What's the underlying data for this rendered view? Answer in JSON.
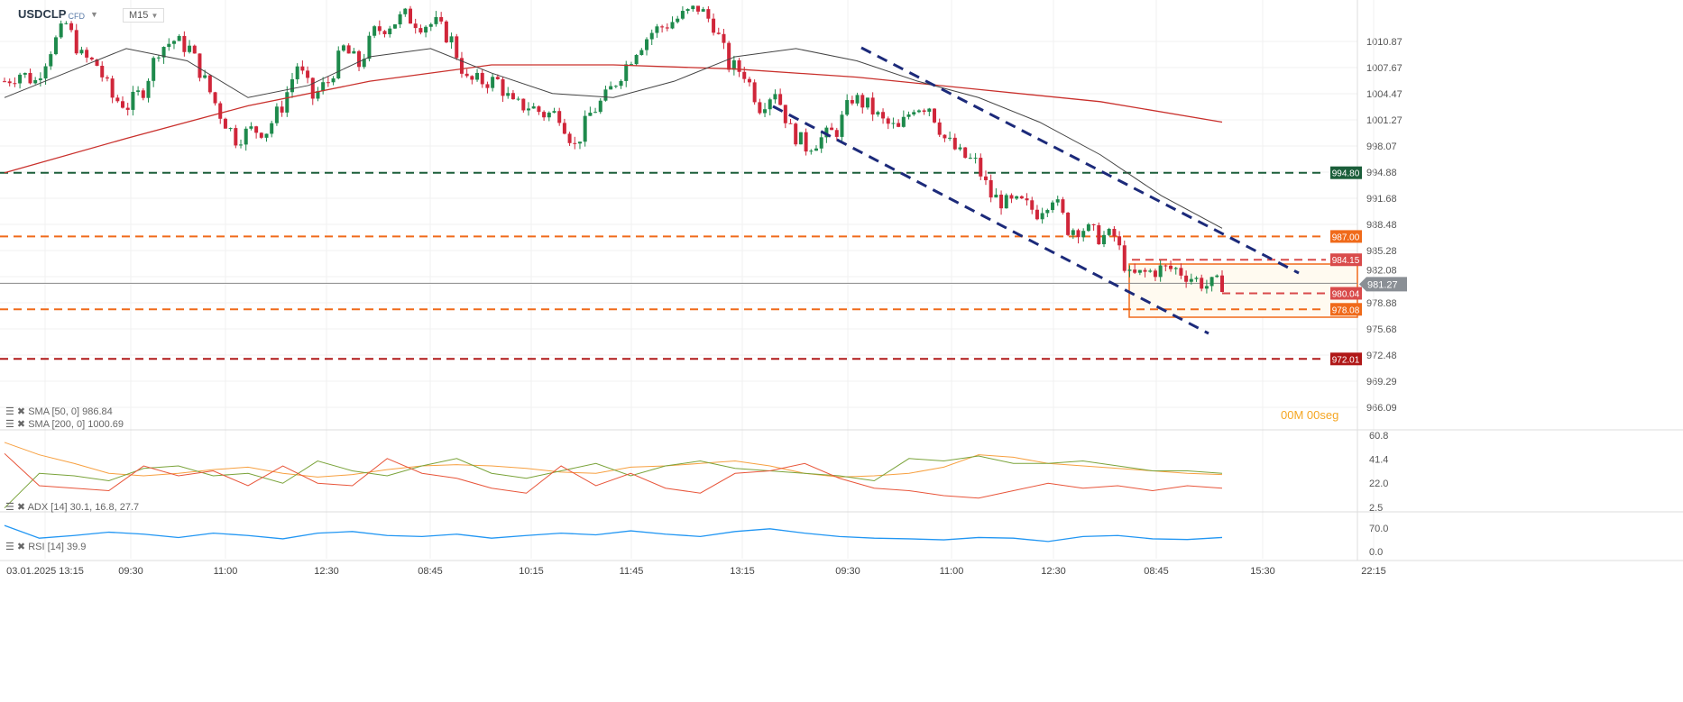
{
  "header": {
    "symbol": "USDCLP",
    "badge": "CFD",
    "timeframe": "M15"
  },
  "timer": {
    "minutes": "00M",
    "seconds": "00seg"
  },
  "legend": {
    "sma50": "SMA [50, 0] 986.84",
    "sma200": "SMA [200, 0] 1000.69",
    "adx": "ADX [14] 30.1, 16.8, 27.7",
    "rsi": "RSI [14] 39.9"
  },
  "colors": {
    "up": "#1e8a4c",
    "down": "#d0263a",
    "sma50": "#444444",
    "sma200": "#c9302c",
    "channel": "#1c2a7a",
    "orange": "#f06a1a"
  },
  "chart_data": {
    "type": "candlestick",
    "symbol": "USDCLP",
    "ylim": [
      966.09,
      1013.5
    ],
    "y_ticks": [
      "1010.87",
      "1007.67",
      "1004.47",
      "1001.27",
      "998.07",
      "994.88",
      "991.68",
      "988.48",
      "985.28",
      "982.08",
      "978.88",
      "975.68",
      "972.48",
      "969.29",
      "966.09"
    ],
    "x_ticks": [
      "03.01.2025  13:15",
      "09:30",
      "11:00",
      "12:30",
      "08:45",
      "10:15",
      "11:45",
      "13:15",
      "09:30",
      "11:00",
      "12:30",
      "08:45",
      "15:30",
      "22:15"
    ],
    "closes": [
      1006,
      1007,
      1006,
      1010,
      1013,
      1009,
      1008,
      1004,
      1003,
      1005,
      1010,
      1011,
      1010,
      1006,
      1002,
      999,
      1000,
      1000,
      1003,
      1008,
      1004,
      1006,
      1010,
      1008,
      1012,
      1013,
      1014,
      1013,
      1013,
      1011,
      1006,
      1006,
      1006,
      1003,
      1003,
      1002,
      1002,
      998,
      1002,
      1004,
      1007,
      1010,
      1012,
      1013,
      1014,
      1015,
      1013,
      1008,
      1007,
      1003,
      1005,
      1000,
      998,
      999,
      1000,
      1004,
      1003,
      1001,
      1000,
      1003,
      1003,
      999,
      997,
      996,
      992,
      991,
      991,
      990,
      992,
      988,
      988,
      987,
      987,
      982,
      982.5,
      983,
      983,
      982,
      981,
      981.27
    ],
    "sma50": [
      1004,
      1007,
      1010,
      1008.5,
      1004,
      1005.5,
      1009,
      1010,
      1007,
      1004.5,
      1004,
      1006,
      1009,
      1010,
      1008.5,
      1006,
      1004,
      1001,
      997,
      992,
      988
    ],
    "sma200": [
      994.8,
      999,
      1003,
      1006,
      1008,
      1008,
      1007.5,
      1006.5,
      1005,
      1003.5,
      1001
    ],
    "levels": [
      {
        "label": "994.80",
        "price": 994.8,
        "color": "#1b5e3a"
      },
      {
        "label": "987.00",
        "price": 987.0,
        "color": "#f06a1a"
      },
      {
        "label": "984.15",
        "price": 984.15,
        "color": "#d94b4b"
      },
      {
        "label": "980.04",
        "price": 980.04,
        "color": "#d94b4b"
      },
      {
        "label": "978.08",
        "price": 978.08,
        "color": "#f06a1a"
      },
      {
        "label": "972.01",
        "price": 972.01,
        "color": "#b01818"
      }
    ],
    "current_price": "981.27",
    "adx": {
      "ticks": [
        "60.8",
        "41.4",
        "22.0",
        "2.5"
      ],
      "adx_line": [
        55,
        45,
        38,
        30,
        28,
        30,
        33,
        35,
        30,
        27,
        29,
        33,
        36,
        37,
        36,
        34,
        31,
        30,
        35,
        36,
        38,
        40,
        36,
        30,
        27,
        28,
        30,
        35,
        45,
        43,
        38,
        36,
        34,
        32,
        30,
        29
      ],
      "plus_di": [
        2,
        30,
        28,
        24,
        34,
        36,
        28,
        30,
        22,
        40,
        32,
        28,
        36,
        42,
        30,
        26,
        32,
        38,
        28,
        36,
        40,
        34,
        32,
        30,
        28,
        24,
        42,
        40,
        44,
        38,
        38,
        40,
        36,
        32,
        32,
        30
      ],
      "minus_di": [
        46,
        20,
        18,
        16,
        36,
        28,
        32,
        20,
        36,
        22,
        20,
        42,
        30,
        26,
        18,
        14,
        36,
        20,
        30,
        18,
        14,
        30,
        32,
        38,
        26,
        18,
        16,
        12,
        10,
        16,
        22,
        18,
        20,
        16,
        20,
        18
      ]
    },
    "rsi": {
      "ticks": [
        "70.0",
        "0.0"
      ],
      "values": [
        78,
        40,
        48,
        58,
        52,
        42,
        55,
        48,
        38,
        55,
        60,
        48,
        45,
        52,
        40,
        48,
        55,
        50,
        62,
        52,
        45,
        60,
        68,
        55,
        45,
        40,
        38,
        35,
        42,
        40,
        30,
        45,
        48,
        38,
        36,
        42
      ]
    }
  }
}
